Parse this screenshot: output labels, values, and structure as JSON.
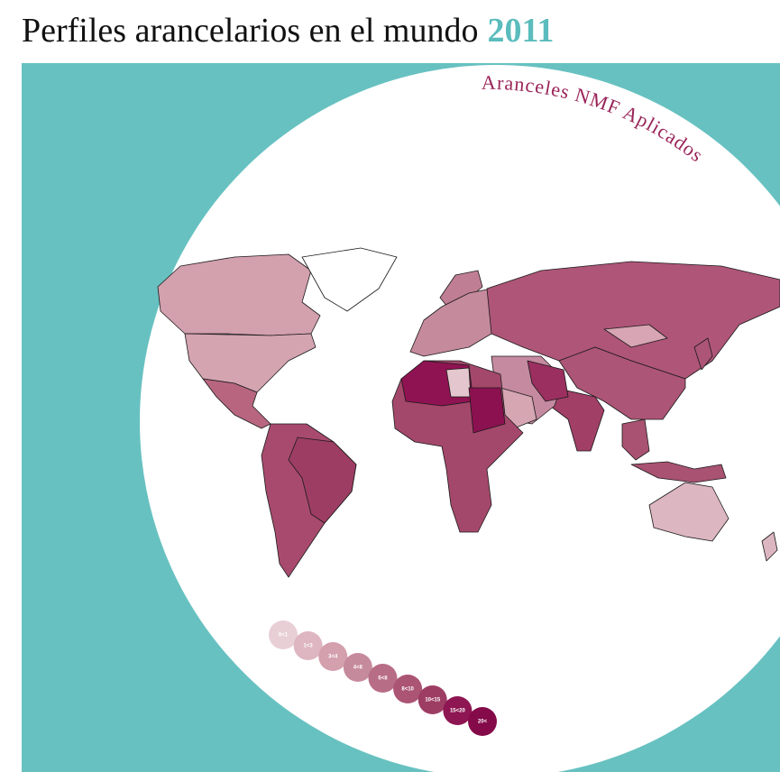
{
  "header": {
    "title": "Perfiles arancelarios en el mundo",
    "year": "2011"
  },
  "map": {
    "subtitle": "Aranceles NMF Aplicados"
  },
  "legend": {
    "items": [
      {
        "label": "0<1",
        "color": "#e8cfd6"
      },
      {
        "label": "1<3",
        "color": "#deb6c1"
      },
      {
        "label": "3<4",
        "color": "#d4a0ae"
      },
      {
        "label": "4<6",
        "color": "#c68a9d"
      },
      {
        "label": "6<8",
        "color": "#b86d86"
      },
      {
        "label": "8<10",
        "color": "#ab5474"
      },
      {
        "label": "10<15",
        "color": "#9e3d64"
      },
      {
        "label": "15<20",
        "color": "#8e1652"
      },
      {
        "label": "20<",
        "color": "#850a4a"
      }
    ]
  }
}
